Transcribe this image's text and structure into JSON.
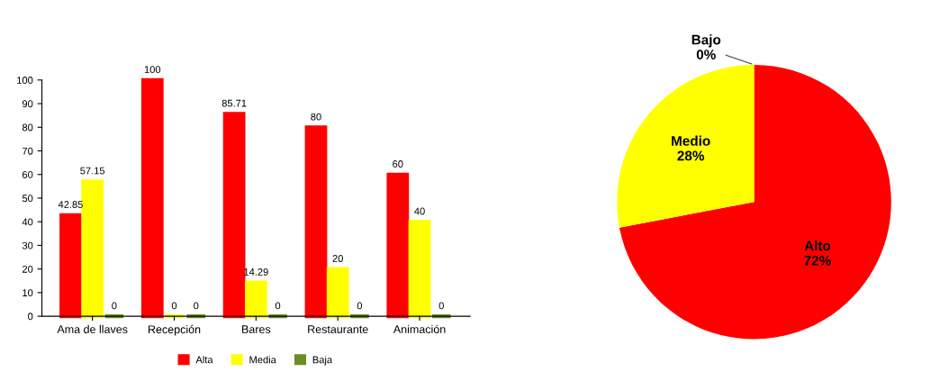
{
  "chart_data": [
    {
      "type": "bar",
      "categories": [
        "Ama de llaves",
        "Recepción",
        "Bares",
        "Restaurante",
        "Animación"
      ],
      "series": [
        {
          "name": "Alta",
          "color": "#ff0000",
          "values": [
            42.85,
            100,
            85.71,
            80,
            60
          ]
        },
        {
          "name": "Media",
          "color": "#ffff00",
          "values": [
            57.15,
            0,
            14.29,
            20,
            40
          ]
        },
        {
          "name": "Baja",
          "color": "#6b8e23",
          "values": [
            0,
            0,
            0,
            0,
            0
          ]
        }
      ],
      "ylim": [
        0,
        100
      ],
      "yticks": [
        0,
        10,
        20,
        30,
        40,
        50,
        60,
        70,
        80,
        90,
        100
      ],
      "data_labels": true,
      "legend": "bottom",
      "grid": false
    },
    {
      "type": "pie",
      "categories": [
        "Alto",
        "Medio",
        "Bajo"
      ],
      "values": [
        72,
        28,
        0
      ],
      "colors": [
        "#ff0000",
        "#ffff00",
        "#6b8e23"
      ],
      "value_labels": [
        "72%",
        "28%",
        "0%"
      ]
    }
  ]
}
